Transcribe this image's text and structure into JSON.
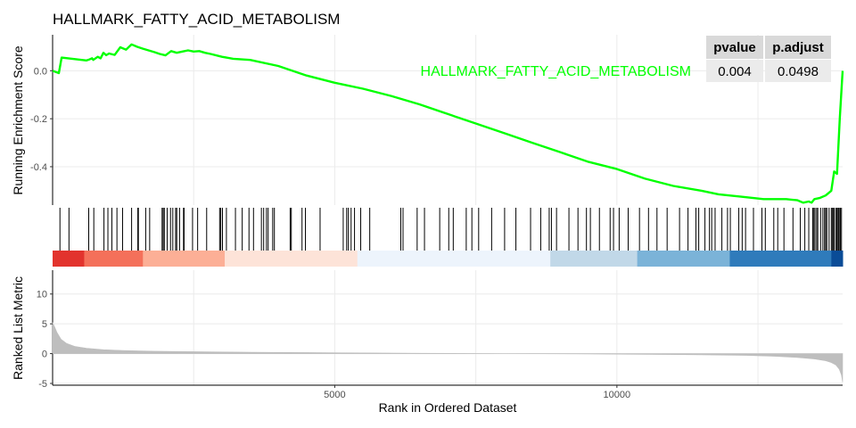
{
  "chart_data": {
    "type": "line",
    "title": "HALLMARK_FATTY_ACID_METABOLISM",
    "xlabel": "Rank in Ordered Dataset",
    "xlim": [
      0,
      14000
    ],
    "x_ticks": [
      5000,
      10000
    ],
    "series_color": "#00FF00",
    "series_label": "HALLMARK_FATTY_ACID_METABOLISM",
    "running_score": {
      "ylabel": "Running Enrichment Score",
      "ylim": [
        -0.56,
        0.15
      ],
      "y_ticks": [
        0.0,
        -0.2,
        -0.4
      ],
      "y_tick_labels": [
        "0.0",
        "-0.2",
        "-0.4"
      ],
      "x": [
        0,
        110,
        160,
        600,
        650,
        700,
        720,
        800,
        850,
        900,
        950,
        1000,
        1100,
        1200,
        1300,
        1400,
        1500,
        1600,
        1700,
        1800,
        1900,
        2000,
        2100,
        2200,
        2300,
        2400,
        2500,
        2600,
        2700,
        2800,
        3000,
        3200,
        3500,
        4000,
        4500,
        5000,
        5500,
        6000,
        6500,
        7000,
        7500,
        8000,
        8500,
        9000,
        9500,
        10000,
        10500,
        11000,
        11500,
        11800,
        12200,
        12600,
        13000,
        13200,
        13300,
        13400,
        13450,
        13500,
        13600,
        13700,
        13800,
        13850,
        13900,
        13950,
        14000
      ],
      "y": [
        0.0,
        -0.01,
        0.055,
        0.043,
        0.047,
        0.052,
        0.045,
        0.058,
        0.052,
        0.075,
        0.065,
        0.072,
        0.066,
        0.098,
        0.088,
        0.11,
        0.1,
        0.092,
        0.085,
        0.078,
        0.07,
        0.064,
        0.082,
        0.075,
        0.08,
        0.085,
        0.08,
        0.082,
        0.075,
        0.07,
        0.058,
        0.05,
        0.045,
        0.02,
        -0.02,
        -0.05,
        -0.075,
        -0.105,
        -0.14,
        -0.18,
        -0.22,
        -0.26,
        -0.3,
        -0.34,
        -0.38,
        -0.41,
        -0.45,
        -0.48,
        -0.5,
        -0.515,
        -0.525,
        -0.535,
        -0.535,
        -0.54,
        -0.55,
        -0.545,
        -0.55,
        -0.535,
        -0.53,
        -0.52,
        -0.5,
        -0.42,
        -0.43,
        -0.2,
        0.0
      ]
    },
    "hits": [
      130,
      290,
      640,
      730,
      910,
      980,
      1050,
      1140,
      1240,
      1400,
      1510,
      1520,
      1650,
      1720,
      1940,
      1960,
      1980,
      2030,
      2090,
      2130,
      2180,
      2200,
      2250,
      2320,
      2330,
      2480,
      2570,
      2730,
      2960,
      2980,
      3010,
      3080,
      3240,
      3360,
      3480,
      3560,
      3700,
      3740,
      3790,
      3820,
      3900,
      3930,
      4210,
      4230,
      4420,
      4480,
      4740,
      5150,
      5210,
      5240,
      5290,
      5350,
      5460,
      5620,
      6170,
      6210,
      6460,
      6590,
      6860,
      7020,
      7100,
      7330,
      7430,
      7550,
      7780,
      8010,
      8210,
      8470,
      8650,
      8800,
      8840,
      8930,
      9150,
      9310,
      9460,
      9530,
      9690,
      9880,
      9940,
      10040,
      10200,
      10400,
      10560,
      10710,
      10890,
      11110,
      11260,
      11400,
      11450,
      11560,
      11640,
      11680,
      11740,
      11860,
      11960,
      12010,
      12160,
      12220,
      12280,
      12420,
      12570,
      12630,
      12780,
      12850,
      12960,
      13120,
      13250,
      13330,
      13400,
      13470,
      13490,
      13510,
      13540,
      13560,
      13610,
      13650,
      13680,
      13700,
      13720,
      13760,
      13800,
      13820,
      13830,
      13850,
      13880,
      13900,
      13910,
      13930,
      13950,
      13960,
      13980
    ],
    "color_bands": [
      {
        "start": 0,
        "end": 560,
        "color": "#E2332D"
      },
      {
        "start": 560,
        "end": 1600,
        "color": "#F4705A"
      },
      {
        "start": 1600,
        "end": 3050,
        "color": "#FCAF96"
      },
      {
        "start": 3050,
        "end": 5400,
        "color": "#FDE3D8"
      },
      {
        "start": 5400,
        "end": 8820,
        "color": "#EDF4FC"
      },
      {
        "start": 8820,
        "end": 10360,
        "color": "#C1D8E8"
      },
      {
        "start": 10360,
        "end": 12000,
        "color": "#7BB3D8"
      },
      {
        "start": 12000,
        "end": 13800,
        "color": "#2F7BBB"
      },
      {
        "start": 13800,
        "end": 14000,
        "color": "#0A4C97"
      }
    ],
    "ranked_metric": {
      "ylabel": "Ranked List Metric",
      "ylim": [
        -5.3,
        14
      ],
      "y_ticks": [
        10,
        5,
        0,
        -5
      ],
      "y_tick_labels": [
        "10",
        "5",
        "0",
        "-5"
      ],
      "fill_color": "#BEBEBE",
      "x": [
        0,
        30,
        80,
        150,
        250,
        400,
        600,
        900,
        1300,
        1800,
        2500,
        3500,
        4500,
        5500,
        6500,
        7500,
        8500,
        9500,
        10500,
        11500,
        12300,
        12800,
        13200,
        13500,
        13700,
        13800,
        13880,
        13940,
        13980,
        14000
      ],
      "y": [
        5.2,
        4.6,
        3.5,
        2.4,
        1.7,
        1.2,
        0.9,
        0.65,
        0.5,
        0.4,
        0.32,
        0.24,
        0.18,
        0.12,
        0.06,
        0.02,
        -0.02,
        -0.06,
        -0.12,
        -0.2,
        -0.3,
        -0.45,
        -0.65,
        -0.9,
        -1.2,
        -1.5,
        -1.9,
        -2.6,
        -3.6,
        -4.8
      ]
    },
    "stats_table": {
      "headers": [
        "pvalue",
        "p.adjust"
      ],
      "values": [
        "0.004",
        "0.0498"
      ],
      "header_fill": "#D9D9D9",
      "cell_fill": "#EBEBEB"
    }
  }
}
